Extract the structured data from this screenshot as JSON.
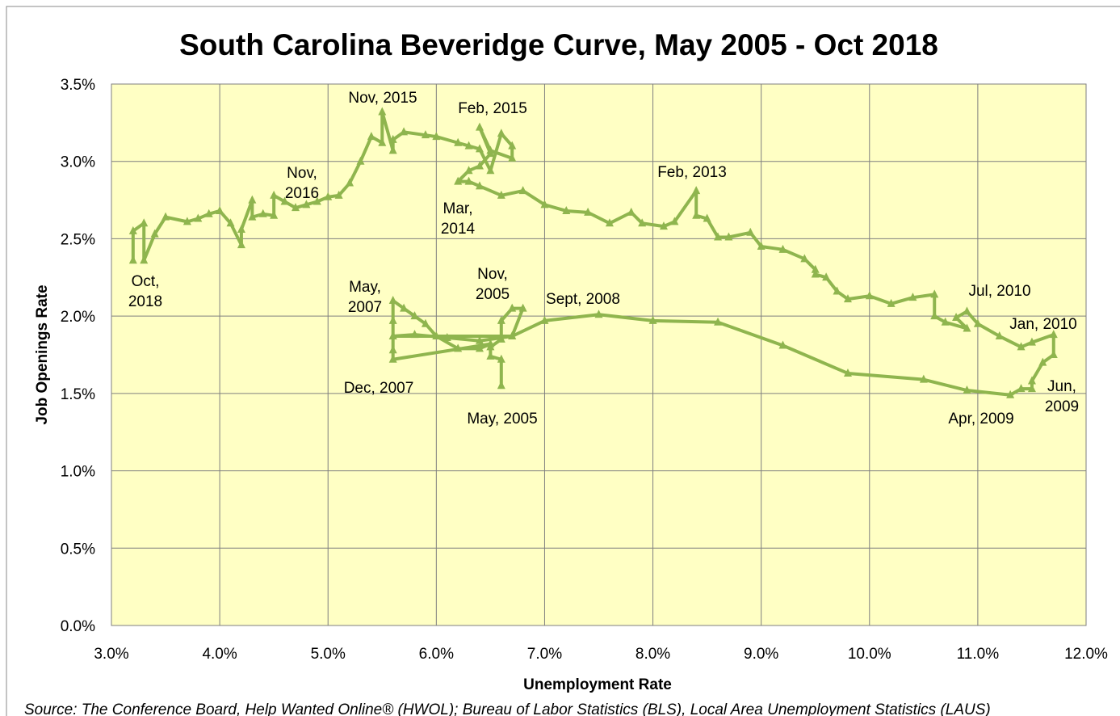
{
  "chart_data": {
    "type": "line",
    "title": "South Carolina Beveridge Curve, May 2005 - Oct 2018",
    "xlabel": "Unemployment Rate",
    "ylabel": "Job Openings Rate",
    "source": "Source: The Conference Board, Help Wanted Online® (HWOL); Bureau of Labor Statistics (BLS), Local Area Unemployment Statistics (LAUS)",
    "xlim": [
      3,
      12
    ],
    "xticks": [
      {
        "value": 3,
        "label": "3.0%"
      },
      {
        "value": 4,
        "label": "4.0%"
      },
      {
        "value": 5,
        "label": "5.0%"
      },
      {
        "value": 6,
        "label": "6.0%"
      },
      {
        "value": 7,
        "label": "7.0%"
      },
      {
        "value": 8,
        "label": "8.0%"
      },
      {
        "value": 9,
        "label": "9.0%"
      },
      {
        "value": 10,
        "label": "10.0%"
      },
      {
        "value": 11,
        "label": "11.0%"
      },
      {
        "value": 12,
        "label": "12.0%"
      }
    ],
    "ylim": [
      0,
      3.5
    ],
    "yticks": [
      {
        "value": 0,
        "label": "0.0%"
      },
      {
        "value": 0.5,
        "label": "0.5%"
      },
      {
        "value": 1,
        "label": "1.0%"
      },
      {
        "value": 1.5,
        "label": "1.5%"
      },
      {
        "value": 2,
        "label": "2.0%"
      },
      {
        "value": 2.5,
        "label": "2.5%"
      },
      {
        "value": 3,
        "label": "3.0%"
      },
      {
        "value": 3.5,
        "label": "3.5%"
      }
    ],
    "grid": true,
    "background": "#ffffc4",
    "series": [
      {
        "color": "#8fb54e",
        "x": [
          6.6,
          6.6,
          6.5,
          6.5,
          6.6,
          6.6,
          6.7,
          6.8,
          6.7,
          6.4,
          6.1,
          5.8,
          5.6,
          5.6,
          5.6,
          5.7,
          5.8,
          5.9,
          6.0,
          6.2,
          6.4,
          6.5,
          5.6,
          5.6,
          5.6,
          6.7,
          7.0,
          7.5,
          8.0,
          8.6,
          9.2,
          9.8,
          10.5,
          10.9,
          11.3,
          11.4,
          11.5,
          11.5,
          11.6,
          11.7,
          11.7,
          11.5,
          11.4,
          11.2,
          11.0,
          10.9,
          10.8,
          10.9,
          10.7,
          10.6,
          10.6,
          10.4,
          10.2,
          10.0,
          9.8,
          9.7,
          9.6,
          9.5,
          9.5,
          9.4,
          9.2,
          9.0,
          8.9,
          8.7,
          8.6,
          8.5,
          8.4,
          8.4,
          8.2,
          8.1,
          7.9,
          7.8,
          7.6,
          7.4,
          7.2,
          7.0,
          6.8,
          6.6,
          6.4,
          6.3,
          6.2,
          6.3,
          6.4,
          6.5,
          6.4,
          6.5,
          6.7,
          6.7,
          6.6,
          6.5,
          6.4,
          6.3,
          6.2,
          6.0,
          5.9,
          5.7,
          5.6,
          5.6,
          5.5,
          5.5,
          5.4,
          5.3,
          5.2,
          5.1,
          5.0,
          4.9,
          4.8,
          4.7,
          4.6,
          4.5,
          4.5,
          4.4,
          4.3,
          4.3,
          4.2,
          4.2,
          4.1,
          4.0,
          3.9,
          3.8,
          3.7,
          3.5,
          3.4,
          3.3,
          3.3,
          3.2,
          3.2
        ],
        "values": [
          1.55,
          1.72,
          1.74,
          1.8,
          1.85,
          1.97,
          2.05,
          2.05,
          1.87,
          1.84,
          1.86,
          1.88,
          1.87,
          1.97,
          2.1,
          2.05,
          2.0,
          1.95,
          1.87,
          1.79,
          1.79,
          1.82,
          1.72,
          1.78,
          1.87,
          1.87,
          1.97,
          2.01,
          1.97,
          1.96,
          1.81,
          1.63,
          1.59,
          1.52,
          1.49,
          1.53,
          1.53,
          1.58,
          1.7,
          1.75,
          1.88,
          1.83,
          1.8,
          1.87,
          1.95,
          2.03,
          1.99,
          1.92,
          1.96,
          2.0,
          2.14,
          2.12,
          2.08,
          2.13,
          2.11,
          2.16,
          2.25,
          2.27,
          2.3,
          2.37,
          2.43,
          2.45,
          2.54,
          2.51,
          2.51,
          2.63,
          2.65,
          2.81,
          2.61,
          2.58,
          2.6,
          2.67,
          2.6,
          2.67,
          2.68,
          2.72,
          2.81,
          2.78,
          2.84,
          2.87,
          2.87,
          2.94,
          2.97,
          3.05,
          3.22,
          3.07,
          3.02,
          3.1,
          3.18,
          2.94,
          3.08,
          3.1,
          3.12,
          3.16,
          3.17,
          3.19,
          3.14,
          3.07,
          3.32,
          3.12,
          3.16,
          3.0,
          2.86,
          2.78,
          2.77,
          2.74,
          2.72,
          2.7,
          2.74,
          2.78,
          2.65,
          2.66,
          2.64,
          2.75,
          2.56,
          2.46,
          2.6,
          2.68,
          2.66,
          2.63,
          2.61,
          2.64,
          2.53,
          2.36,
          2.6,
          2.55,
          2.36
        ]
      }
    ],
    "annotations": [
      [
        "Nov, 2015"
      ],
      [
        "Feb, 2015"
      ],
      [
        "Nov,",
        "2016"
      ],
      [
        "Mar,",
        "2014"
      ],
      [
        "Feb, 2013"
      ],
      [
        "Oct,",
        "2018"
      ],
      [
        "May,",
        "2007"
      ],
      [
        "Nov,",
        "2005"
      ],
      [
        "Sept, 2008"
      ],
      [
        "Dec, 2007"
      ],
      [
        "May, 2005"
      ],
      [
        "Jul, 2010"
      ],
      [
        "Jan, 2010"
      ],
      [
        "Jun,",
        "2009"
      ],
      [
        "Apr, 2009"
      ]
    ]
  }
}
